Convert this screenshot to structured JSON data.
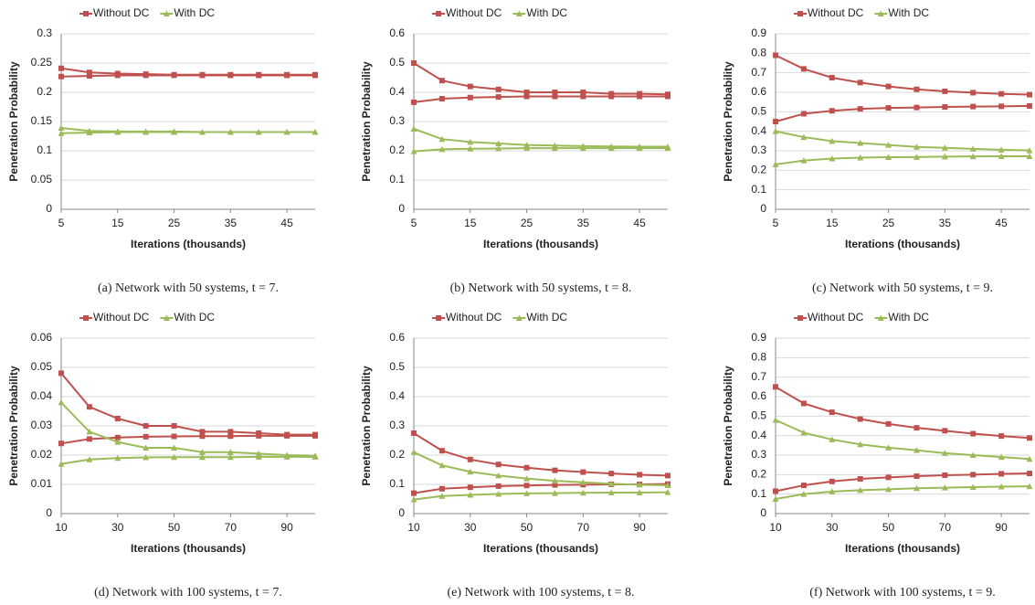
{
  "chart_data": [
    {
      "type": "line",
      "caption": "(a) Network with 50 systems, t = 7.",
      "x_label": "Iterations (thousands)",
      "y_label": "Penetration Probability",
      "x": [
        5,
        10,
        15,
        20,
        25,
        30,
        35,
        40,
        45,
        50
      ],
      "xlim": [
        5,
        50
      ],
      "xticks": [
        5,
        15,
        25,
        35,
        45
      ],
      "ylim": [
        0,
        0.3
      ],
      "yticks": [
        0,
        0.05,
        0.1,
        0.15,
        0.2,
        0.25,
        0.3
      ],
      "grid": true,
      "series": [
        {
          "name": "Without DC",
          "color": "#c0504d",
          "values": [
            0.241,
            0.234,
            0.232,
            0.231,
            0.23,
            0.23,
            0.23,
            0.23,
            0.23,
            0.23
          ]
        },
        {
          "name": "Without DC",
          "color": "#c0504d",
          "values": [
            0.227,
            0.228,
            0.229,
            0.229,
            0.229,
            0.229,
            0.229,
            0.229,
            0.229,
            0.229
          ]
        },
        {
          "name": "With DC",
          "color": "#9bbb59",
          "values": [
            0.139,
            0.134,
            0.133,
            0.133,
            0.133,
            0.132,
            0.132,
            0.132,
            0.132,
            0.132
          ]
        },
        {
          "name": "With DC",
          "color": "#9bbb59",
          "values": [
            0.13,
            0.131,
            0.132,
            0.132,
            0.132,
            0.132,
            0.132,
            0.132,
            0.132,
            0.132
          ]
        }
      ]
    },
    {
      "type": "line",
      "caption": "(b) Network with 50 systems, t = 8.",
      "x_label": "Iterations (thousands)",
      "y_label": "Penetration Probability",
      "x": [
        5,
        10,
        15,
        20,
        25,
        30,
        35,
        40,
        45,
        50
      ],
      "xlim": [
        5,
        50
      ],
      "xticks": [
        5,
        15,
        25,
        35,
        45
      ],
      "ylim": [
        0,
        0.6
      ],
      "yticks": [
        0,
        0.1,
        0.2,
        0.3,
        0.4,
        0.5,
        0.6
      ],
      "grid": true,
      "series": [
        {
          "name": "Without DC",
          "color": "#c0504d",
          "values": [
            0.5,
            0.44,
            0.42,
            0.41,
            0.4,
            0.4,
            0.4,
            0.395,
            0.395,
            0.393
          ]
        },
        {
          "name": "Without DC",
          "color": "#c0504d",
          "values": [
            0.366,
            0.378,
            0.382,
            0.384,
            0.386,
            0.386,
            0.386,
            0.386,
            0.386,
            0.386
          ]
        },
        {
          "name": "With DC",
          "color": "#9bbb59",
          "values": [
            0.275,
            0.24,
            0.23,
            0.225,
            0.22,
            0.218,
            0.216,
            0.215,
            0.214,
            0.214
          ]
        },
        {
          "name": "With DC",
          "color": "#9bbb59",
          "values": [
            0.198,
            0.205,
            0.207,
            0.208,
            0.209,
            0.209,
            0.209,
            0.209,
            0.209,
            0.209
          ]
        }
      ]
    },
    {
      "type": "line",
      "caption": "(c) Network with 50 systems, t = 9.",
      "x_label": "Iterations (thousands)",
      "y_label": "Penetration Probability",
      "x": [
        5,
        10,
        15,
        20,
        25,
        30,
        35,
        40,
        45,
        50
      ],
      "xlim": [
        5,
        50
      ],
      "xticks": [
        5,
        15,
        25,
        35,
        45
      ],
      "ylim": [
        0,
        0.9
      ],
      "yticks": [
        0,
        0.1,
        0.2,
        0.3,
        0.4,
        0.5,
        0.6,
        0.7,
        0.8,
        0.9
      ],
      "grid": true,
      "series": [
        {
          "name": "Without DC",
          "color": "#c0504d",
          "values": [
            0.79,
            0.72,
            0.675,
            0.65,
            0.63,
            0.615,
            0.605,
            0.598,
            0.592,
            0.588
          ]
        },
        {
          "name": "Without DC",
          "color": "#c0504d",
          "values": [
            0.45,
            0.49,
            0.505,
            0.515,
            0.52,
            0.522,
            0.525,
            0.527,
            0.528,
            0.53
          ]
        },
        {
          "name": "With DC",
          "color": "#9bbb59",
          "values": [
            0.4,
            0.37,
            0.35,
            0.34,
            0.33,
            0.32,
            0.315,
            0.31,
            0.305,
            0.302
          ]
        },
        {
          "name": "With DC",
          "color": "#9bbb59",
          "values": [
            0.23,
            0.25,
            0.26,
            0.265,
            0.267,
            0.268,
            0.27,
            0.271,
            0.272,
            0.272
          ]
        }
      ]
    },
    {
      "type": "line",
      "caption": "(d) Network with 100 systems, t = 7.",
      "x_label": "Iterations (thousands)",
      "y_label": "Penetration Probability",
      "x": [
        10,
        20,
        30,
        40,
        50,
        60,
        70,
        80,
        90,
        100
      ],
      "xlim": [
        10,
        100
      ],
      "xticks": [
        10,
        30,
        50,
        70,
        90
      ],
      "ylim": [
        0,
        0.06
      ],
      "yticks": [
        0,
        0.01,
        0.02,
        0.03,
        0.04,
        0.05,
        0.06
      ],
      "grid": true,
      "series": [
        {
          "name": "Without DC",
          "color": "#c0504d",
          "values": [
            0.048,
            0.0365,
            0.0325,
            0.03,
            0.03,
            0.028,
            0.028,
            0.0275,
            0.027,
            0.027
          ]
        },
        {
          "name": "Without DC",
          "color": "#c0504d",
          "values": [
            0.024,
            0.0255,
            0.026,
            0.0263,
            0.0264,
            0.0265,
            0.0265,
            0.0266,
            0.0266,
            0.0266
          ]
        },
        {
          "name": "With DC",
          "color": "#9bbb59",
          "values": [
            0.038,
            0.028,
            0.0245,
            0.0225,
            0.0225,
            0.021,
            0.021,
            0.0205,
            0.02,
            0.0198
          ]
        },
        {
          "name": "With DC",
          "color": "#9bbb59",
          "values": [
            0.017,
            0.0185,
            0.019,
            0.0192,
            0.0193,
            0.0193,
            0.0193,
            0.0194,
            0.0194,
            0.0194
          ]
        }
      ]
    },
    {
      "type": "line",
      "caption": "(e) Network with 100 systems, t = 8.",
      "x_label": "Iterations (thousands)",
      "y_label": "Penetration Probability",
      "x": [
        10,
        20,
        30,
        40,
        50,
        60,
        70,
        80,
        90,
        100
      ],
      "xlim": [
        10,
        100
      ],
      "xticks": [
        10,
        30,
        50,
        70,
        90
      ],
      "ylim": [
        0,
        0.6
      ],
      "yticks": [
        0,
        0.1,
        0.2,
        0.3,
        0.4,
        0.5,
        0.6
      ],
      "grid": true,
      "series": [
        {
          "name": "Without DC",
          "color": "#c0504d",
          "values": [
            0.275,
            0.215,
            0.185,
            0.168,
            0.157,
            0.148,
            0.142,
            0.137,
            0.133,
            0.13
          ]
        },
        {
          "name": "Without DC",
          "color": "#c0504d",
          "values": [
            0.07,
            0.085,
            0.09,
            0.094,
            0.096,
            0.098,
            0.099,
            0.1,
            0.1,
            0.101
          ]
        },
        {
          "name": "With DC",
          "color": "#9bbb59",
          "values": [
            0.21,
            0.165,
            0.143,
            0.13,
            0.12,
            0.112,
            0.107,
            0.102,
            0.099,
            0.097
          ]
        },
        {
          "name": "With DC",
          "color": "#9bbb59",
          "values": [
            0.048,
            0.06,
            0.064,
            0.067,
            0.069,
            0.07,
            0.071,
            0.072,
            0.072,
            0.073
          ]
        }
      ]
    },
    {
      "type": "line",
      "caption": "(f) Network with 100 systems, t = 9.",
      "x_label": "Iterations (thousands)",
      "y_label": "Penetration Probability",
      "x": [
        10,
        20,
        30,
        40,
        50,
        60,
        70,
        80,
        90,
        100
      ],
      "xlim": [
        10,
        100
      ],
      "xticks": [
        10,
        30,
        50,
        70,
        90
      ],
      "ylim": [
        0,
        0.9
      ],
      "yticks": [
        0,
        0.1,
        0.2,
        0.3,
        0.4,
        0.5,
        0.6,
        0.7,
        0.8,
        0.9
      ],
      "grid": true,
      "series": [
        {
          "name": "Without DC",
          "color": "#c0504d",
          "values": [
            0.65,
            0.565,
            0.52,
            0.485,
            0.46,
            0.44,
            0.425,
            0.41,
            0.398,
            0.388
          ]
        },
        {
          "name": "Without DC",
          "color": "#c0504d",
          "values": [
            0.115,
            0.145,
            0.165,
            0.178,
            0.186,
            0.192,
            0.197,
            0.2,
            0.204,
            0.206
          ]
        },
        {
          "name": "With DC",
          "color": "#9bbb59",
          "values": [
            0.48,
            0.415,
            0.38,
            0.355,
            0.338,
            0.325,
            0.31,
            0.3,
            0.29,
            0.28
          ]
        },
        {
          "name": "With DC",
          "color": "#9bbb59",
          "values": [
            0.075,
            0.1,
            0.113,
            0.12,
            0.125,
            0.13,
            0.133,
            0.136,
            0.138,
            0.14
          ]
        }
      ]
    }
  ]
}
